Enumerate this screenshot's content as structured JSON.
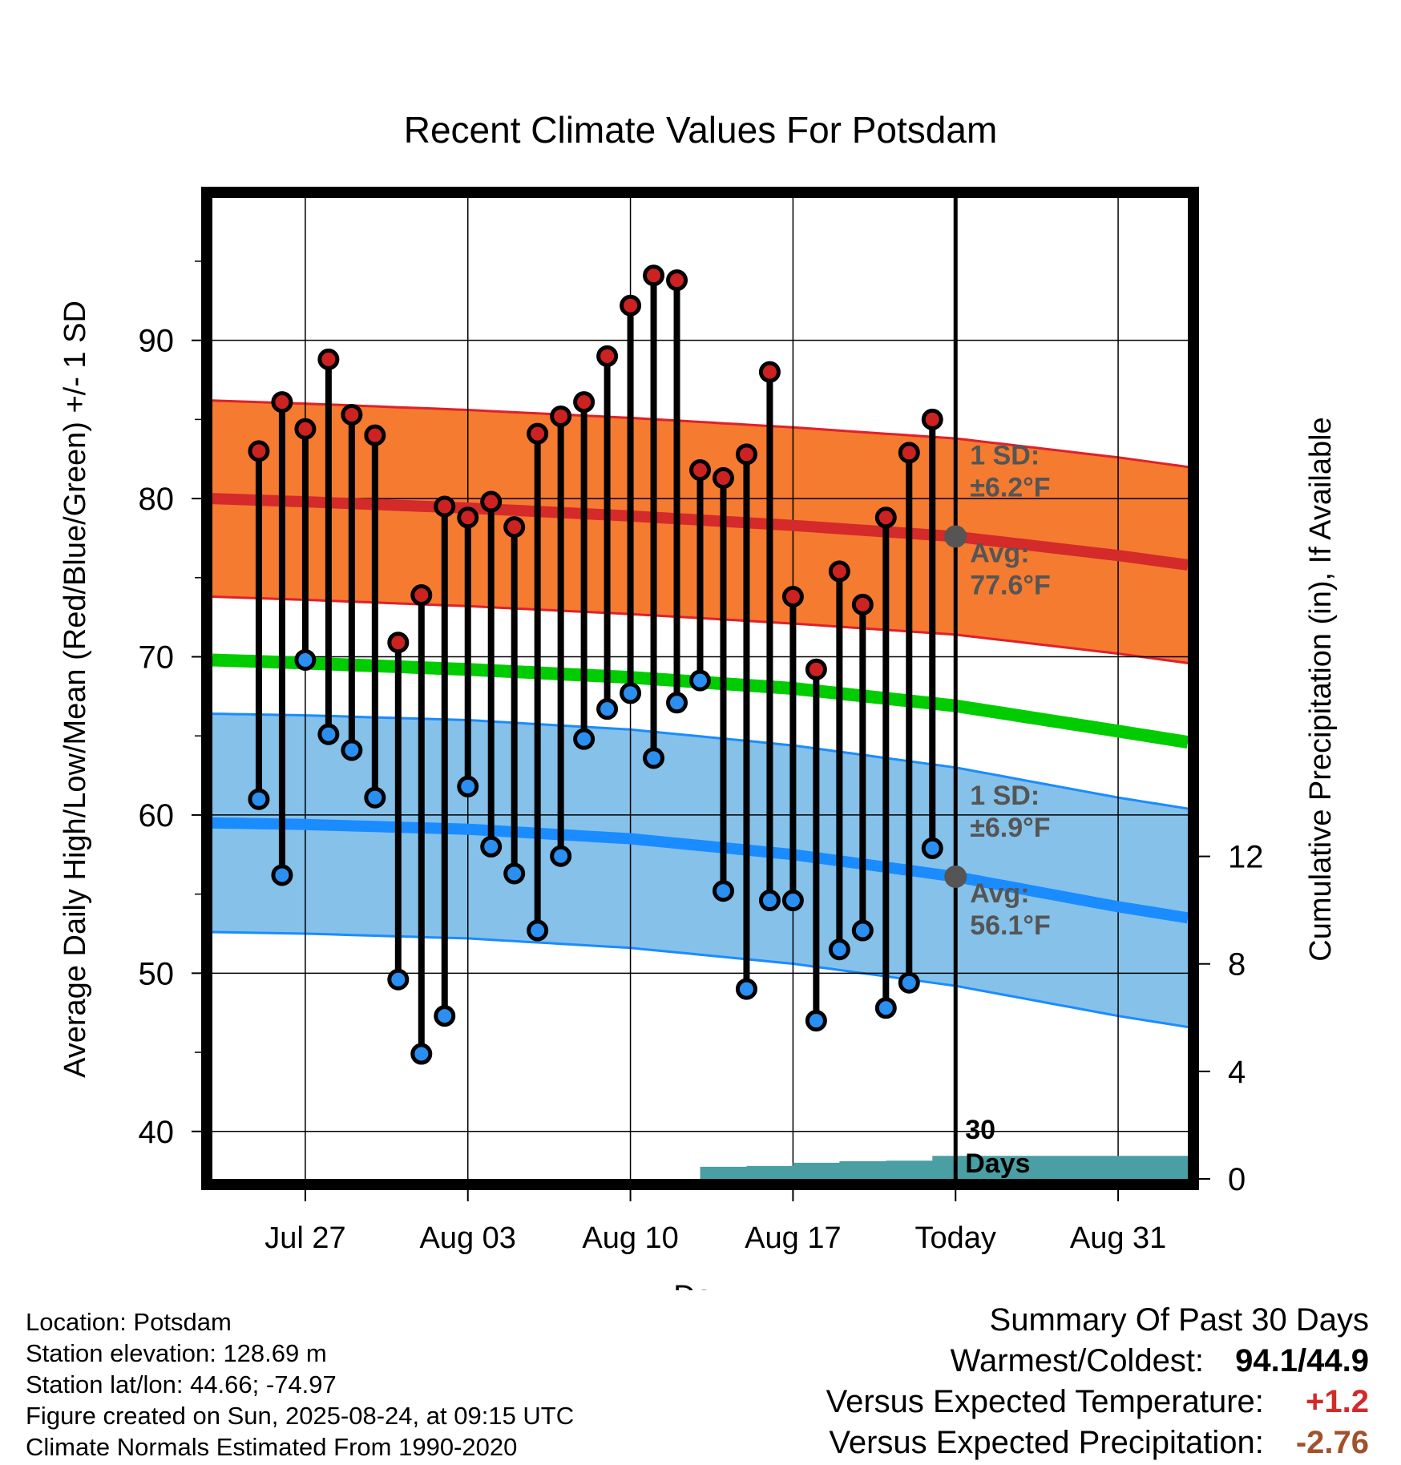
{
  "chart_data": {
    "type": "line",
    "title": "Recent Climate Values For Potsdam",
    "xlabel": "Day",
    "ylabel": "Average Daily High/Low/Mean (Red/Blue/Green) +/- 1 SD",
    "y2label": "Cumulative Precipitation (in), If Available",
    "ylim": [
      37,
      99
    ],
    "y2lim": [
      0,
      36.5
    ],
    "yticks": [
      "40",
      "50",
      "60",
      "70",
      "80",
      "90"
    ],
    "y2ticks": [
      "0",
      "4",
      "8",
      "12"
    ],
    "xlim": [
      "Jul 23",
      "Sep 03"
    ],
    "xticks": [
      {
        "date": "Jul 27",
        "label": "Jul 27"
      },
      {
        "date": "Aug 03",
        "label": "Aug 03"
      },
      {
        "date": "Aug 10",
        "label": "Aug 10"
      },
      {
        "date": "Aug 17",
        "label": "Aug 17"
      },
      {
        "date": "Aug 24",
        "label": "Today"
      },
      {
        "date": "Aug 31",
        "label": "Aug 31"
      }
    ],
    "grid": true,
    "today": "Aug 24",
    "today_label": "30\nDays",
    "days": [
      "Jul 25",
      "Jul 26",
      "Jul 27",
      "Jul 28",
      "Jul 29",
      "Jul 30",
      "Jul 31",
      "Aug 01",
      "Aug 02",
      "Aug 03",
      "Aug 04",
      "Aug 05",
      "Aug 06",
      "Aug 07",
      "Aug 08",
      "Aug 09",
      "Aug 10",
      "Aug 11",
      "Aug 12",
      "Aug 13",
      "Aug 14",
      "Aug 15",
      "Aug 16",
      "Aug 17",
      "Aug 18",
      "Aug 19",
      "Aug 20",
      "Aug 21",
      "Aug 22",
      "Aug 23"
    ],
    "series": [
      {
        "name": "High",
        "values": [
          83.0,
          86.1,
          84.4,
          88.8,
          85.3,
          84.0,
          70.9,
          73.9,
          79.5,
          78.8,
          79.8,
          78.2,
          84.1,
          85.2,
          86.1,
          89.0,
          92.2,
          94.1,
          93.8,
          81.8,
          81.3,
          82.8,
          88.0,
          73.8,
          69.2,
          75.4,
          73.3,
          78.8,
          82.9,
          85.0
        ]
      },
      {
        "name": "Low",
        "values": [
          61.0,
          56.2,
          69.8,
          65.1,
          64.1,
          61.1,
          49.6,
          44.9,
          47.3,
          61.8,
          58.0,
          56.3,
          52.7,
          57.4,
          64.8,
          66.7,
          67.7,
          63.6,
          67.1,
          68.5,
          55.2,
          49.0,
          54.6,
          54.6,
          47.0,
          51.5,
          52.7,
          47.8,
          49.4,
          57.9
        ]
      }
    ],
    "normals": {
      "days": [
        "Jul 23",
        "Jul 27",
        "Aug 03",
        "Aug 10",
        "Aug 17",
        "Aug 24",
        "Aug 31",
        "Sep 03"
      ],
      "high_avg": [
        80.0,
        79.8,
        79.4,
        78.9,
        78.3,
        77.6,
        76.4,
        75.8
      ],
      "high_sd": 6.2,
      "low_avg": [
        59.5,
        59.4,
        59.1,
        58.5,
        57.5,
        56.1,
        54.2,
        53.5
      ],
      "low_sd": 6.9,
      "mean_avg": [
        69.8,
        69.6,
        69.2,
        68.7,
        68.0,
        66.9,
        65.3,
        64.6
      ]
    },
    "precipitation": {
      "days": [
        "Aug 12",
        "Aug 13",
        "Aug 14",
        "Aug 15",
        "Aug 16",
        "Aug 17",
        "Aug 18",
        "Aug 19",
        "Aug 20",
        "Aug 21",
        "Aug 22",
        "Aug 23",
        "Aug 24",
        "Sep 03"
      ],
      "values": [
        0.0,
        0.45,
        0.45,
        0.48,
        0.48,
        0.6,
        0.6,
        0.66,
        0.66,
        0.68,
        0.68,
        0.86,
        0.86,
        0.86
      ]
    },
    "annotations": {
      "high_sd_label": "1 SD:",
      "high_sd_value": "±6.2°F",
      "high_avg_label": "Avg:",
      "high_avg_value": "77.6°F",
      "low_sd_label": "1 SD:",
      "low_sd_value": "±6.9°F",
      "low_avg_label": "Avg:",
      "low_avg_value": "56.1°F"
    },
    "colors": {
      "high_band": "#f47b30",
      "high_avg": "#d42a2a",
      "high_edge": "#e0202a",
      "low_band": "#85c1e9",
      "low_avg": "#1a8cff",
      "low_edge": "#1a8cff",
      "mean": "#00cc00",
      "precip": "#4a9fa5",
      "high_dot": "#cc2222",
      "low_dot": "#2a8ff0",
      "annotation": "#555555"
    }
  },
  "footer": {
    "location": "Location: Potsdam",
    "elevation": "Station elevation: 128.69 m",
    "latlon": "Station lat/lon: 44.66; -74.97",
    "created": "Figure created on Sun, 2025-08-24, at 09:15 UTC",
    "normals": "Climate Normals Estimated From 1990-2020"
  },
  "summary": {
    "title": "Summary Of Past 30 Days",
    "warm_cold_label": "Warmest/Coldest:",
    "warm_cold_value": "94.1/44.9",
    "temp_label": "Versus Expected Temperature:",
    "temp_value": "+1.2",
    "temp_color": "#d22a2a",
    "precip_label": "Versus Expected Precipitation:",
    "precip_value": "-2.76",
    "precip_color": "#a0522d"
  }
}
